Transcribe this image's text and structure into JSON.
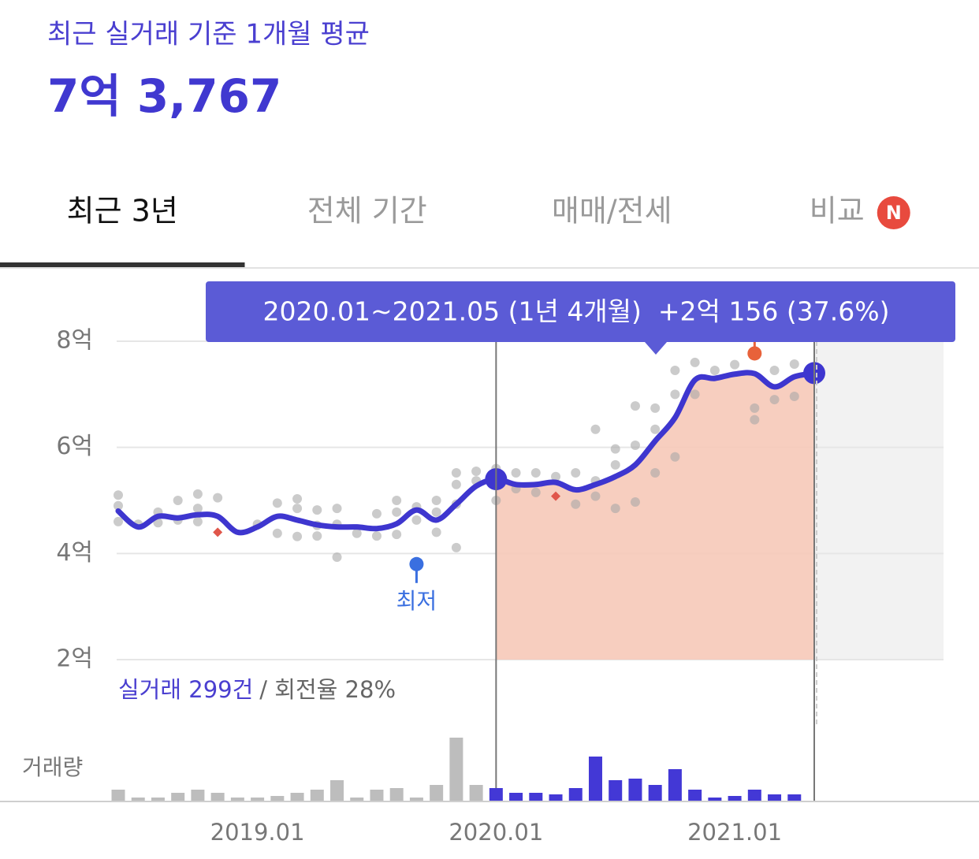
{
  "header": {
    "title": "최근 실거래 기준 1개월 평균",
    "value": "7억 3,767"
  },
  "tabs": [
    {
      "label": "최근 3년",
      "active": true
    },
    {
      "label": "전체 기간"
    },
    {
      "label": "매매/전세"
    },
    {
      "label": "비교",
      "badge": "N"
    }
  ],
  "chart_data": {
    "type": "line",
    "tooltip": "2020.01~2021.05 (1년 4개월)  +2억 156 (37.6%)",
    "summary": {
      "count": "실거래 299건",
      "rate": "/ 회전율 28%"
    },
    "volume_label": "거래량",
    "categories": [
      null,
      null,
      null,
      null,
      null,
      null,
      null,
      "2019.01",
      null,
      null,
      null,
      null,
      null,
      null,
      null,
      null,
      null,
      null,
      null,
      "2020.01",
      null,
      null,
      null,
      null,
      null,
      null,
      null,
      null,
      null,
      null,
      null,
      "2021.01",
      null,
      null,
      null,
      null
    ],
    "values": [
      4.8,
      4.5,
      4.7,
      4.67,
      4.73,
      4.7,
      4.4,
      4.5,
      4.7,
      4.63,
      4.54,
      4.5,
      4.5,
      4.47,
      4.56,
      4.82,
      4.63,
      4.93,
      5.27,
      5.4,
      5.3,
      5.3,
      5.34,
      5.2,
      5.3,
      5.45,
      5.67,
      6.12,
      6.56,
      7.27,
      7.3,
      7.38,
      7.39,
      7.14,
      7.33,
      7.4
    ],
    "color": "#3e36cf",
    "transactions": {
      "color": "#a8a8a8",
      "values": [
        [
          5.1,
          4.9,
          4.6
        ],
        [
          4.55
        ],
        [
          4.78,
          4.58
        ],
        [
          5.0,
          4.63
        ],
        [
          5.12,
          4.85,
          4.6
        ],
        [
          5.05
        ],
        [],
        [
          4.55
        ],
        [
          4.95,
          4.38
        ],
        [
          5.03,
          4.85,
          4.32
        ],
        [
          4.82,
          4.53,
          4.33
        ],
        [
          4.85,
          4.55,
          3.93
        ],
        [
          4.38
        ],
        [
          4.75,
          4.33
        ],
        [
          5.0,
          4.78,
          4.36
        ],
        [
          4.88,
          4.63
        ],
        [
          5.0,
          4.78,
          4.4
        ],
        [
          5.52,
          5.3,
          4.93,
          4.11
        ],
        [
          5.55,
          5.37
        ],
        [
          5.6,
          5.0
        ],
        [
          5.52,
          5.22
        ],
        [
          5.52,
          5.15
        ],
        [
          5.45
        ],
        [
          5.52,
          4.93
        ],
        [
          6.34,
          5.37,
          5.08
        ],
        [
          5.97,
          5.67,
          4.85
        ],
        [
          6.78,
          6.04,
          4.97
        ],
        [
          6.74,
          6.34,
          5.52
        ],
        [
          7.45,
          7.0,
          5.82
        ],
        [
          7.6,
          7.0
        ],
        [
          7.45
        ],
        [
          7.56
        ],
        [
          6.74,
          6.52
        ],
        [
          7.45,
          6.9
        ],
        [
          7.57,
          6.96
        ],
        []
      ]
    },
    "volume": {
      "values": [
        7,
        2,
        2,
        5,
        7,
        5,
        2,
        2,
        3,
        5,
        7,
        13,
        2,
        7,
        8,
        2,
        10,
        40,
        10,
        8,
        5,
        5,
        4,
        8,
        28,
        13,
        14,
        10,
        20,
        7,
        2,
        3,
        7,
        4,
        4,
        0
      ],
      "colors": [
        "#bdbdbd",
        "#bdbdbd",
        "#bdbdbd",
        "#bdbdbd",
        "#bdbdbd",
        "#bdbdbd",
        "#bdbdbd",
        "#bdbdbd",
        "#bdbdbd",
        "#bdbdbd",
        "#bdbdbd",
        "#bdbdbd",
        "#bdbdbd",
        "#bdbdbd",
        "#bdbdbd",
        "#bdbdbd",
        "#bdbdbd",
        "#bdbdbd",
        "#bdbdbd",
        "#4338d6",
        "#4338d6",
        "#4338d6",
        "#4338d6",
        "#4338d6",
        "#4338d6",
        "#4338d6",
        "#4338d6",
        "#4338d6",
        "#4338d6",
        "#4338d6",
        "#4338d6",
        "#4338d6",
        "#4338d6",
        "#4338d6",
        "#4338d6",
        "#4338d6"
      ]
    },
    "markers": [
      {
        "index": 5,
        "value": 4.4,
        "color": "#e0564a",
        "shape": "diamond"
      },
      {
        "index": 22,
        "value": 5.08,
        "color": "#e0564a",
        "shape": "diamond"
      },
      {
        "index": 15,
        "value": 3.8,
        "color": "#3a6fe0",
        "shape": "pin",
        "label": "최저"
      },
      {
        "index": 32,
        "value": 7.77,
        "color": "#e8623a",
        "shape": "pin"
      }
    ],
    "selection": [
      19,
      35
    ],
    "selection_color": "#f6c9b8",
    "future_color": "#f2f2f2",
    "ylim": [
      2,
      8
    ],
    "yticks": [
      {
        "value": 2,
        "label": "2억"
      },
      {
        "value": 4,
        "label": "4억"
      },
      {
        "value": 6,
        "label": "6억"
      },
      {
        "value": 8,
        "label": "8억"
      }
    ],
    "grid": true
  }
}
